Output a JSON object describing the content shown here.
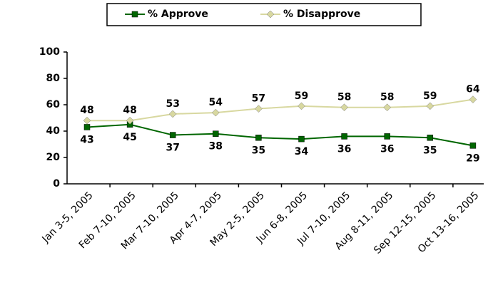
{
  "chart_data": {
    "type": "line",
    "categories": [
      "Jan 3-5, 2005",
      "Feb 7-10, 2005",
      "Mar 7-10, 2005",
      "Apr 4-7, 2005",
      "May 2-5, 2005",
      "Jun 6-8, 2005",
      "Jul 7-10, 2005",
      "Aug 8-11, 2005",
      "Sep 12-15, 2005",
      "Oct 13-16, 2005"
    ],
    "series": [
      {
        "name": "% Approve",
        "color": "#006600",
        "marker": "square",
        "values": [
          43,
          45,
          37,
          38,
          35,
          34,
          36,
          36,
          35,
          29
        ]
      },
      {
        "name": "% Disapprove",
        "color": "#d8d8a0",
        "marker": "diamond",
        "values": [
          48,
          48,
          53,
          54,
          57,
          59,
          58,
          58,
          59,
          64
        ]
      }
    ],
    "ylim": [
      0,
      100
    ],
    "yticks": [
      0,
      20,
      40,
      60,
      80,
      100
    ],
    "legend": "top",
    "grid": false
  }
}
